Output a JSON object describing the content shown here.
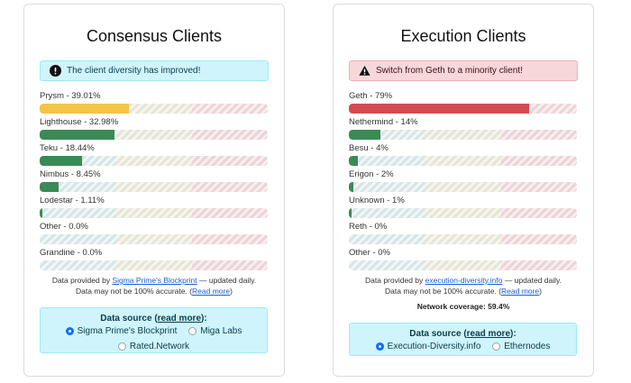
{
  "consensus": {
    "title": "Consensus Clients",
    "alert": {
      "text": "The client diversity has improved!",
      "icon": "exclamation-circle-icon",
      "type": "info"
    },
    "clients": [
      {
        "label": "Prysm - 39.01%",
        "percent": 39.01,
        "color": "#f6c444"
      },
      {
        "label": "Lighthouse - 32.98%",
        "percent": 32.98,
        "color": "#3a8a55"
      },
      {
        "label": "Teku - 18.44%",
        "percent": 18.44,
        "color": "#3a8a55"
      },
      {
        "label": "Nimbus - 8.45%",
        "percent": 8.45,
        "color": "#3a8a55"
      },
      {
        "label": "Lodestar - 1.11%",
        "percent": 1.11,
        "color": "#3a8a55"
      },
      {
        "label": "Other - 0.0%",
        "percent": 0.0,
        "color": "#3a8a55"
      },
      {
        "label": "Grandine - 0.0%",
        "percent": 0.0,
        "color": "#3a8a55"
      }
    ],
    "footer": {
      "prefix": "Data provided by ",
      "link": "Sigma Prime's Blockprint",
      "suffix": " — updated daily.",
      "line2_prefix": "Data may not be 100% accurate. (",
      "read_more": "Read more",
      "line2_suffix": ")"
    },
    "source": {
      "title_prefix": "Data source (",
      "read_more": "read more",
      "title_suffix": "):",
      "options": [
        {
          "label": "Sigma Prime's Blockprint",
          "checked": true
        },
        {
          "label": "Miga Labs",
          "checked": false
        },
        {
          "label": "Rated.Network",
          "checked": false
        }
      ]
    }
  },
  "execution": {
    "title": "Execution Clients",
    "alert": {
      "text": "Switch from Geth to a minority client!",
      "icon": "warning-triangle-icon",
      "type": "danger"
    },
    "clients": [
      {
        "label": "Geth - 79%",
        "percent": 79,
        "color": "#d44b52"
      },
      {
        "label": "Nethermind - 14%",
        "percent": 14,
        "color": "#3a8a55"
      },
      {
        "label": "Besu - 4%",
        "percent": 4,
        "color": "#3a8a55"
      },
      {
        "label": "Erigon - 2%",
        "percent": 2,
        "color": "#3a8a55"
      },
      {
        "label": "Unknown - 1%",
        "percent": 1,
        "color": "#3a8a55"
      },
      {
        "label": "Reth - 0%",
        "percent": 0,
        "color": "#3a8a55"
      },
      {
        "label": "Other - 0%",
        "percent": 0,
        "color": "#3a8a55"
      }
    ],
    "footer": {
      "prefix": "Data provided by ",
      "link": "execution-diversity.info",
      "suffix": " — updated daily.",
      "line2_prefix": "Data may not be 100% accurate. (",
      "read_more": "Read more",
      "line2_suffix": ")"
    },
    "coverage": "Network coverage: 59.4%",
    "source": {
      "title_prefix": "Data source (",
      "read_more": "read more",
      "title_suffix": "):",
      "options": [
        {
          "label": "Execution-Diversity.info",
          "checked": true
        },
        {
          "label": "Ethernodes",
          "checked": false
        }
      ]
    }
  }
}
